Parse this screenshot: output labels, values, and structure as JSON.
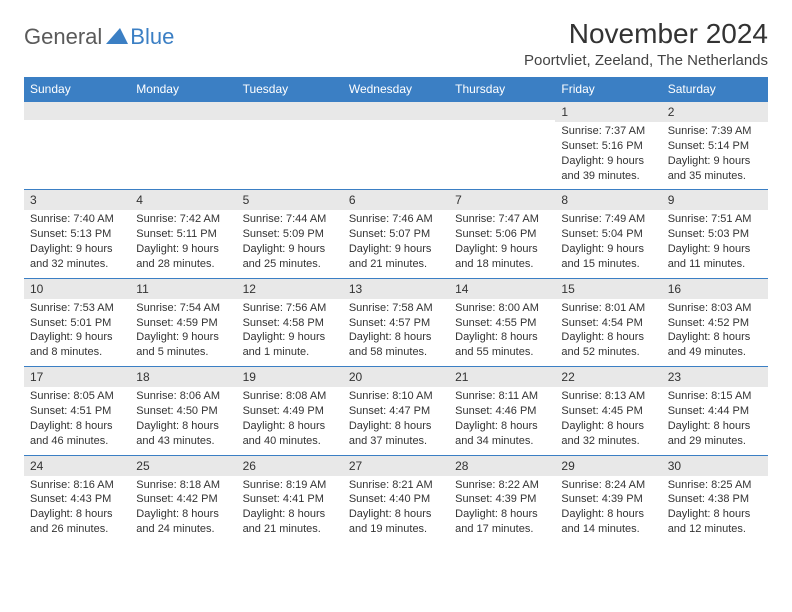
{
  "logo": {
    "text1": "General",
    "text2": "Blue"
  },
  "title": "November 2024",
  "location": "Poortvliet, Zeeland, The Netherlands",
  "colors": {
    "header_bg": "#3b7fc4",
    "header_text": "#ffffff",
    "daynum_bg": "#e8e8e8",
    "row_border": "#3b7fc4",
    "text": "#333333",
    "logo_gray": "#5a5a5a",
    "logo_blue": "#3b7fc4",
    "page_bg": "#ffffff"
  },
  "typography": {
    "title_fontsize": 28,
    "location_fontsize": 15,
    "dayheader_fontsize": 12,
    "daynum_fontsize": 12,
    "body_fontsize": 11
  },
  "days_of_week": [
    "Sunday",
    "Monday",
    "Tuesday",
    "Wednesday",
    "Thursday",
    "Friday",
    "Saturday"
  ],
  "weeks": [
    [
      null,
      null,
      null,
      null,
      null,
      {
        "n": "1",
        "sr": "Sunrise: 7:37 AM",
        "ss": "Sunset: 5:16 PM",
        "d1": "Daylight: 9 hours",
        "d2": "and 39 minutes."
      },
      {
        "n": "2",
        "sr": "Sunrise: 7:39 AM",
        "ss": "Sunset: 5:14 PM",
        "d1": "Daylight: 9 hours",
        "d2": "and 35 minutes."
      }
    ],
    [
      {
        "n": "3",
        "sr": "Sunrise: 7:40 AM",
        "ss": "Sunset: 5:13 PM",
        "d1": "Daylight: 9 hours",
        "d2": "and 32 minutes."
      },
      {
        "n": "4",
        "sr": "Sunrise: 7:42 AM",
        "ss": "Sunset: 5:11 PM",
        "d1": "Daylight: 9 hours",
        "d2": "and 28 minutes."
      },
      {
        "n": "5",
        "sr": "Sunrise: 7:44 AM",
        "ss": "Sunset: 5:09 PM",
        "d1": "Daylight: 9 hours",
        "d2": "and 25 minutes."
      },
      {
        "n": "6",
        "sr": "Sunrise: 7:46 AM",
        "ss": "Sunset: 5:07 PM",
        "d1": "Daylight: 9 hours",
        "d2": "and 21 minutes."
      },
      {
        "n": "7",
        "sr": "Sunrise: 7:47 AM",
        "ss": "Sunset: 5:06 PM",
        "d1": "Daylight: 9 hours",
        "d2": "and 18 minutes."
      },
      {
        "n": "8",
        "sr": "Sunrise: 7:49 AM",
        "ss": "Sunset: 5:04 PM",
        "d1": "Daylight: 9 hours",
        "d2": "and 15 minutes."
      },
      {
        "n": "9",
        "sr": "Sunrise: 7:51 AM",
        "ss": "Sunset: 5:03 PM",
        "d1": "Daylight: 9 hours",
        "d2": "and 11 minutes."
      }
    ],
    [
      {
        "n": "10",
        "sr": "Sunrise: 7:53 AM",
        "ss": "Sunset: 5:01 PM",
        "d1": "Daylight: 9 hours",
        "d2": "and 8 minutes."
      },
      {
        "n": "11",
        "sr": "Sunrise: 7:54 AM",
        "ss": "Sunset: 4:59 PM",
        "d1": "Daylight: 9 hours",
        "d2": "and 5 minutes."
      },
      {
        "n": "12",
        "sr": "Sunrise: 7:56 AM",
        "ss": "Sunset: 4:58 PM",
        "d1": "Daylight: 9 hours",
        "d2": "and 1 minute."
      },
      {
        "n": "13",
        "sr": "Sunrise: 7:58 AM",
        "ss": "Sunset: 4:57 PM",
        "d1": "Daylight: 8 hours",
        "d2": "and 58 minutes."
      },
      {
        "n": "14",
        "sr": "Sunrise: 8:00 AM",
        "ss": "Sunset: 4:55 PM",
        "d1": "Daylight: 8 hours",
        "d2": "and 55 minutes."
      },
      {
        "n": "15",
        "sr": "Sunrise: 8:01 AM",
        "ss": "Sunset: 4:54 PM",
        "d1": "Daylight: 8 hours",
        "d2": "and 52 minutes."
      },
      {
        "n": "16",
        "sr": "Sunrise: 8:03 AM",
        "ss": "Sunset: 4:52 PM",
        "d1": "Daylight: 8 hours",
        "d2": "and 49 minutes."
      }
    ],
    [
      {
        "n": "17",
        "sr": "Sunrise: 8:05 AM",
        "ss": "Sunset: 4:51 PM",
        "d1": "Daylight: 8 hours",
        "d2": "and 46 minutes."
      },
      {
        "n": "18",
        "sr": "Sunrise: 8:06 AM",
        "ss": "Sunset: 4:50 PM",
        "d1": "Daylight: 8 hours",
        "d2": "and 43 minutes."
      },
      {
        "n": "19",
        "sr": "Sunrise: 8:08 AM",
        "ss": "Sunset: 4:49 PM",
        "d1": "Daylight: 8 hours",
        "d2": "and 40 minutes."
      },
      {
        "n": "20",
        "sr": "Sunrise: 8:10 AM",
        "ss": "Sunset: 4:47 PM",
        "d1": "Daylight: 8 hours",
        "d2": "and 37 minutes."
      },
      {
        "n": "21",
        "sr": "Sunrise: 8:11 AM",
        "ss": "Sunset: 4:46 PM",
        "d1": "Daylight: 8 hours",
        "d2": "and 34 minutes."
      },
      {
        "n": "22",
        "sr": "Sunrise: 8:13 AM",
        "ss": "Sunset: 4:45 PM",
        "d1": "Daylight: 8 hours",
        "d2": "and 32 minutes."
      },
      {
        "n": "23",
        "sr": "Sunrise: 8:15 AM",
        "ss": "Sunset: 4:44 PM",
        "d1": "Daylight: 8 hours",
        "d2": "and 29 minutes."
      }
    ],
    [
      {
        "n": "24",
        "sr": "Sunrise: 8:16 AM",
        "ss": "Sunset: 4:43 PM",
        "d1": "Daylight: 8 hours",
        "d2": "and 26 minutes."
      },
      {
        "n": "25",
        "sr": "Sunrise: 8:18 AM",
        "ss": "Sunset: 4:42 PM",
        "d1": "Daylight: 8 hours",
        "d2": "and 24 minutes."
      },
      {
        "n": "26",
        "sr": "Sunrise: 8:19 AM",
        "ss": "Sunset: 4:41 PM",
        "d1": "Daylight: 8 hours",
        "d2": "and 21 minutes."
      },
      {
        "n": "27",
        "sr": "Sunrise: 8:21 AM",
        "ss": "Sunset: 4:40 PM",
        "d1": "Daylight: 8 hours",
        "d2": "and 19 minutes."
      },
      {
        "n": "28",
        "sr": "Sunrise: 8:22 AM",
        "ss": "Sunset: 4:39 PM",
        "d1": "Daylight: 8 hours",
        "d2": "and 17 minutes."
      },
      {
        "n": "29",
        "sr": "Sunrise: 8:24 AM",
        "ss": "Sunset: 4:39 PM",
        "d1": "Daylight: 8 hours",
        "d2": "and 14 minutes."
      },
      {
        "n": "30",
        "sr": "Sunrise: 8:25 AM",
        "ss": "Sunset: 4:38 PM",
        "d1": "Daylight: 8 hours",
        "d2": "and 12 minutes."
      }
    ]
  ]
}
